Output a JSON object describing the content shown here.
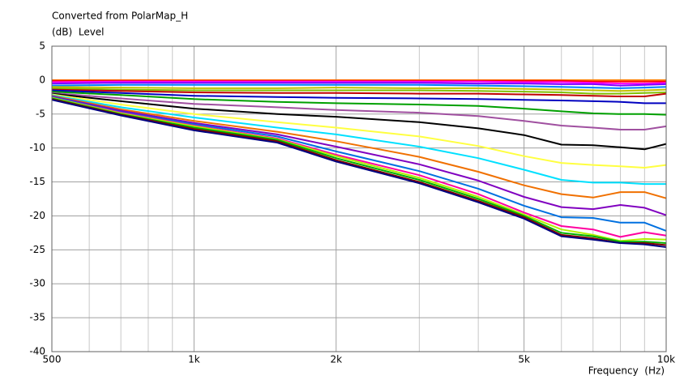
{
  "chart_data": {
    "type": "line",
    "title": "Converted from PolarMap_H",
    "ylabel": "(dB)  Level",
    "xlabel": "Frequency  (Hz)",
    "xscale": "log",
    "grid": true,
    "x": [
      500,
      700,
      1000,
      1500,
      2000,
      3000,
      4000,
      5000,
      6000,
      7000,
      8000,
      9000,
      10000
    ],
    "xlim": [
      500,
      10000
    ],
    "xticks": [
      500,
      {
        "value": 1000,
        "label": "1k"
      },
      {
        "value": 2000,
        "label": "2k"
      },
      {
        "value": 5000,
        "label": "5k"
      },
      {
        "value": 10000,
        "label": "10k"
      }
    ],
    "xminorticks": [
      600,
      700,
      800,
      900,
      3000,
      4000,
      6000,
      7000,
      8000,
      9000
    ],
    "ylim": [
      -40,
      5
    ],
    "yticks": [
      5,
      0,
      -5,
      -10,
      -15,
      -20,
      -25,
      -30,
      -35,
      -40
    ],
    "series": [
      {
        "color": "#ff8000",
        "values": [
          0,
          0,
          0,
          0,
          0,
          0,
          0,
          0,
          0,
          0,
          0,
          0,
          0
        ]
      },
      {
        "color": "#ff0000",
        "values": [
          -0.1,
          -0.1,
          -0.1,
          -0.1,
          -0.1,
          -0.1,
          -0.1,
          -0.1,
          -0.1,
          -0.2,
          -0.2,
          -0.2,
          -0.2
        ]
      },
      {
        "color": "#ff00ff",
        "values": [
          -0.3,
          -0.2,
          -0.2,
          -0.2,
          -0.2,
          -0.2,
          -0.2,
          -0.3,
          -0.3,
          -0.4,
          -0.5,
          -0.5,
          -0.4
        ]
      },
      {
        "color": "#8000ff",
        "values": [
          -0.5,
          -0.4,
          -0.4,
          -0.4,
          -0.4,
          -0.4,
          -0.5,
          -0.5,
          -0.6,
          -0.6,
          -0.8,
          -0.7,
          -0.6
        ]
      },
      {
        "color": "#0080ff",
        "values": [
          -0.8,
          -0.7,
          -0.7,
          -0.7,
          -0.7,
          -0.7,
          -0.8,
          -0.9,
          -1.0,
          -1.1,
          -1.2,
          -1.1,
          -1.0
        ]
      },
      {
        "color": "#c0c000",
        "values": [
          -1.0,
          -1.1,
          -1.2,
          -1.2,
          -1.1,
          -1.2,
          -1.2,
          -1.3,
          -1.4,
          -1.5,
          -1.6,
          -1.5,
          -1.4
        ]
      },
      {
        "color": "#80c000",
        "values": [
          -1.2,
          -1.4,
          -1.5,
          -1.5,
          -1.5,
          -1.5,
          -1.6,
          -1.7,
          -1.8,
          -2.0,
          -2.0,
          -1.9,
          -1.8
        ]
      },
      {
        "color": "#c00000",
        "values": [
          -1.4,
          -1.6,
          -1.8,
          -1.9,
          -1.9,
          -2.0,
          -2.0,
          -2.1,
          -2.2,
          -2.3,
          -2.4,
          -2.4,
          -2.0
        ]
      },
      {
        "color": "#0000c0",
        "values": [
          -1.5,
          -1.9,
          -2.3,
          -2.5,
          -2.6,
          -2.7,
          -2.8,
          -2.9,
          -3.0,
          -3.1,
          -3.2,
          -3.4,
          -3.4
        ]
      },
      {
        "color": "#00a000",
        "values": [
          -1.7,
          -2.2,
          -2.8,
          -3.2,
          -3.4,
          -3.6,
          -3.8,
          -4.2,
          -4.6,
          -4.9,
          -5.0,
          -5.0,
          -5.1
        ]
      },
      {
        "color": "#a050a0",
        "values": [
          -1.9,
          -2.7,
          -3.5,
          -4.0,
          -4.4,
          -4.8,
          -5.3,
          -6.0,
          -6.7,
          -7.0,
          -7.3,
          -7.3,
          -6.8
        ]
      },
      {
        "color": "#000000",
        "values": [
          -2.0,
          -3.1,
          -4.2,
          -5.0,
          -5.4,
          -6.2,
          -7.1,
          -8.1,
          -9.5,
          -9.6,
          -9.9,
          -10.2,
          -9.4
        ]
      },
      {
        "color": "#ffff40",
        "values": [
          -2.1,
          -3.6,
          -5.0,
          -6.2,
          -7.0,
          -8.3,
          -9.7,
          -11.2,
          -12.2,
          -12.5,
          -12.7,
          -12.9,
          -12.5
        ]
      },
      {
        "color": "#00e0ff",
        "values": [
          -2.2,
          -4.0,
          -5.5,
          -7.0,
          -8.0,
          -9.8,
          -11.5,
          -13.2,
          -14.7,
          -15.1,
          -15.1,
          -15.3,
          -15.3
        ]
      },
      {
        "color": "#f07000",
        "values": [
          -2.3,
          -4.3,
          -6.0,
          -7.6,
          -9.0,
          -11.3,
          -13.5,
          -15.5,
          -16.8,
          -17.3,
          -16.5,
          -16.5,
          -17.4
        ]
      },
      {
        "color": "#8000c0",
        "values": [
          -2.4,
          -4.5,
          -6.3,
          -8.0,
          -9.8,
          -12.4,
          -14.8,
          -17.2,
          -18.7,
          -19.0,
          -18.4,
          -18.8,
          -19.9
        ]
      },
      {
        "color": "#0070e0",
        "values": [
          -2.5,
          -4.7,
          -6.5,
          -8.3,
          -10.5,
          -13.4,
          -16.0,
          -18.5,
          -20.2,
          -20.3,
          -21.0,
          -21.0,
          -22.2
        ]
      },
      {
        "color": "#ff00a0",
        "values": [
          -2.6,
          -4.8,
          -6.7,
          -8.6,
          -11.0,
          -14.0,
          -16.8,
          -19.5,
          -21.5,
          -22.0,
          -23.1,
          -22.4,
          -22.9
        ]
      },
      {
        "color": "#b0f000",
        "values": [
          -2.6,
          -4.9,
          -6.8,
          -8.7,
          -11.2,
          -14.4,
          -17.2,
          -19.8,
          -22.0,
          -22.8,
          -23.7,
          -23.4,
          -23.5
        ]
      },
      {
        "color": "#00b000",
        "values": [
          -2.7,
          -5.0,
          -7.0,
          -8.8,
          -11.5,
          -14.7,
          -17.5,
          -20.0,
          -22.5,
          -23.0,
          -23.8,
          -23.8,
          -24.0
        ]
      },
      {
        "color": "#800000",
        "values": [
          -2.8,
          -5.1,
          -7.2,
          -9.0,
          -11.8,
          -15.0,
          -17.8,
          -20.2,
          -22.8,
          -23.3,
          -24.0,
          -24.0,
          -24.3
        ]
      },
      {
        "color": "#000080",
        "values": [
          -2.9,
          -5.2,
          -7.4,
          -9.2,
          -12.0,
          -15.2,
          -18.0,
          -20.4,
          -23.0,
          -23.5,
          -24.0,
          -24.2,
          -24.6
        ]
      }
    ]
  }
}
